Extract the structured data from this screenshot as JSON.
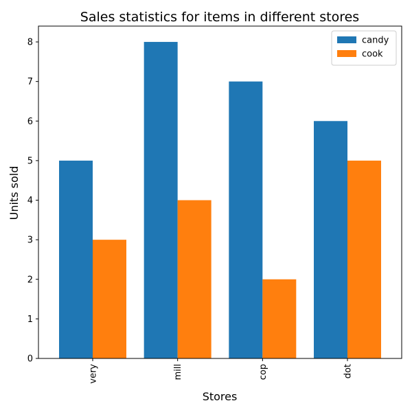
{
  "chart_data": {
    "type": "bar",
    "title": "Sales statistics for items in different stores",
    "xlabel": "Stores",
    "ylabel": "Units sold",
    "categories": [
      "very",
      "mill",
      "cop",
      "dot"
    ],
    "series": [
      {
        "name": "candy",
        "values": [
          5,
          8,
          7,
          6
        ],
        "color": "#1f77b4"
      },
      {
        "name": "cook",
        "values": [
          3,
          4,
          2,
          5
        ],
        "color": "#ff7f0e"
      }
    ],
    "ylim": [
      0,
      8.4
    ],
    "yticks": [
      0,
      1,
      2,
      3,
      4,
      5,
      6,
      7,
      8
    ],
    "grid": false,
    "legend_position": "top-right",
    "xtick_rotation": "vertical"
  }
}
